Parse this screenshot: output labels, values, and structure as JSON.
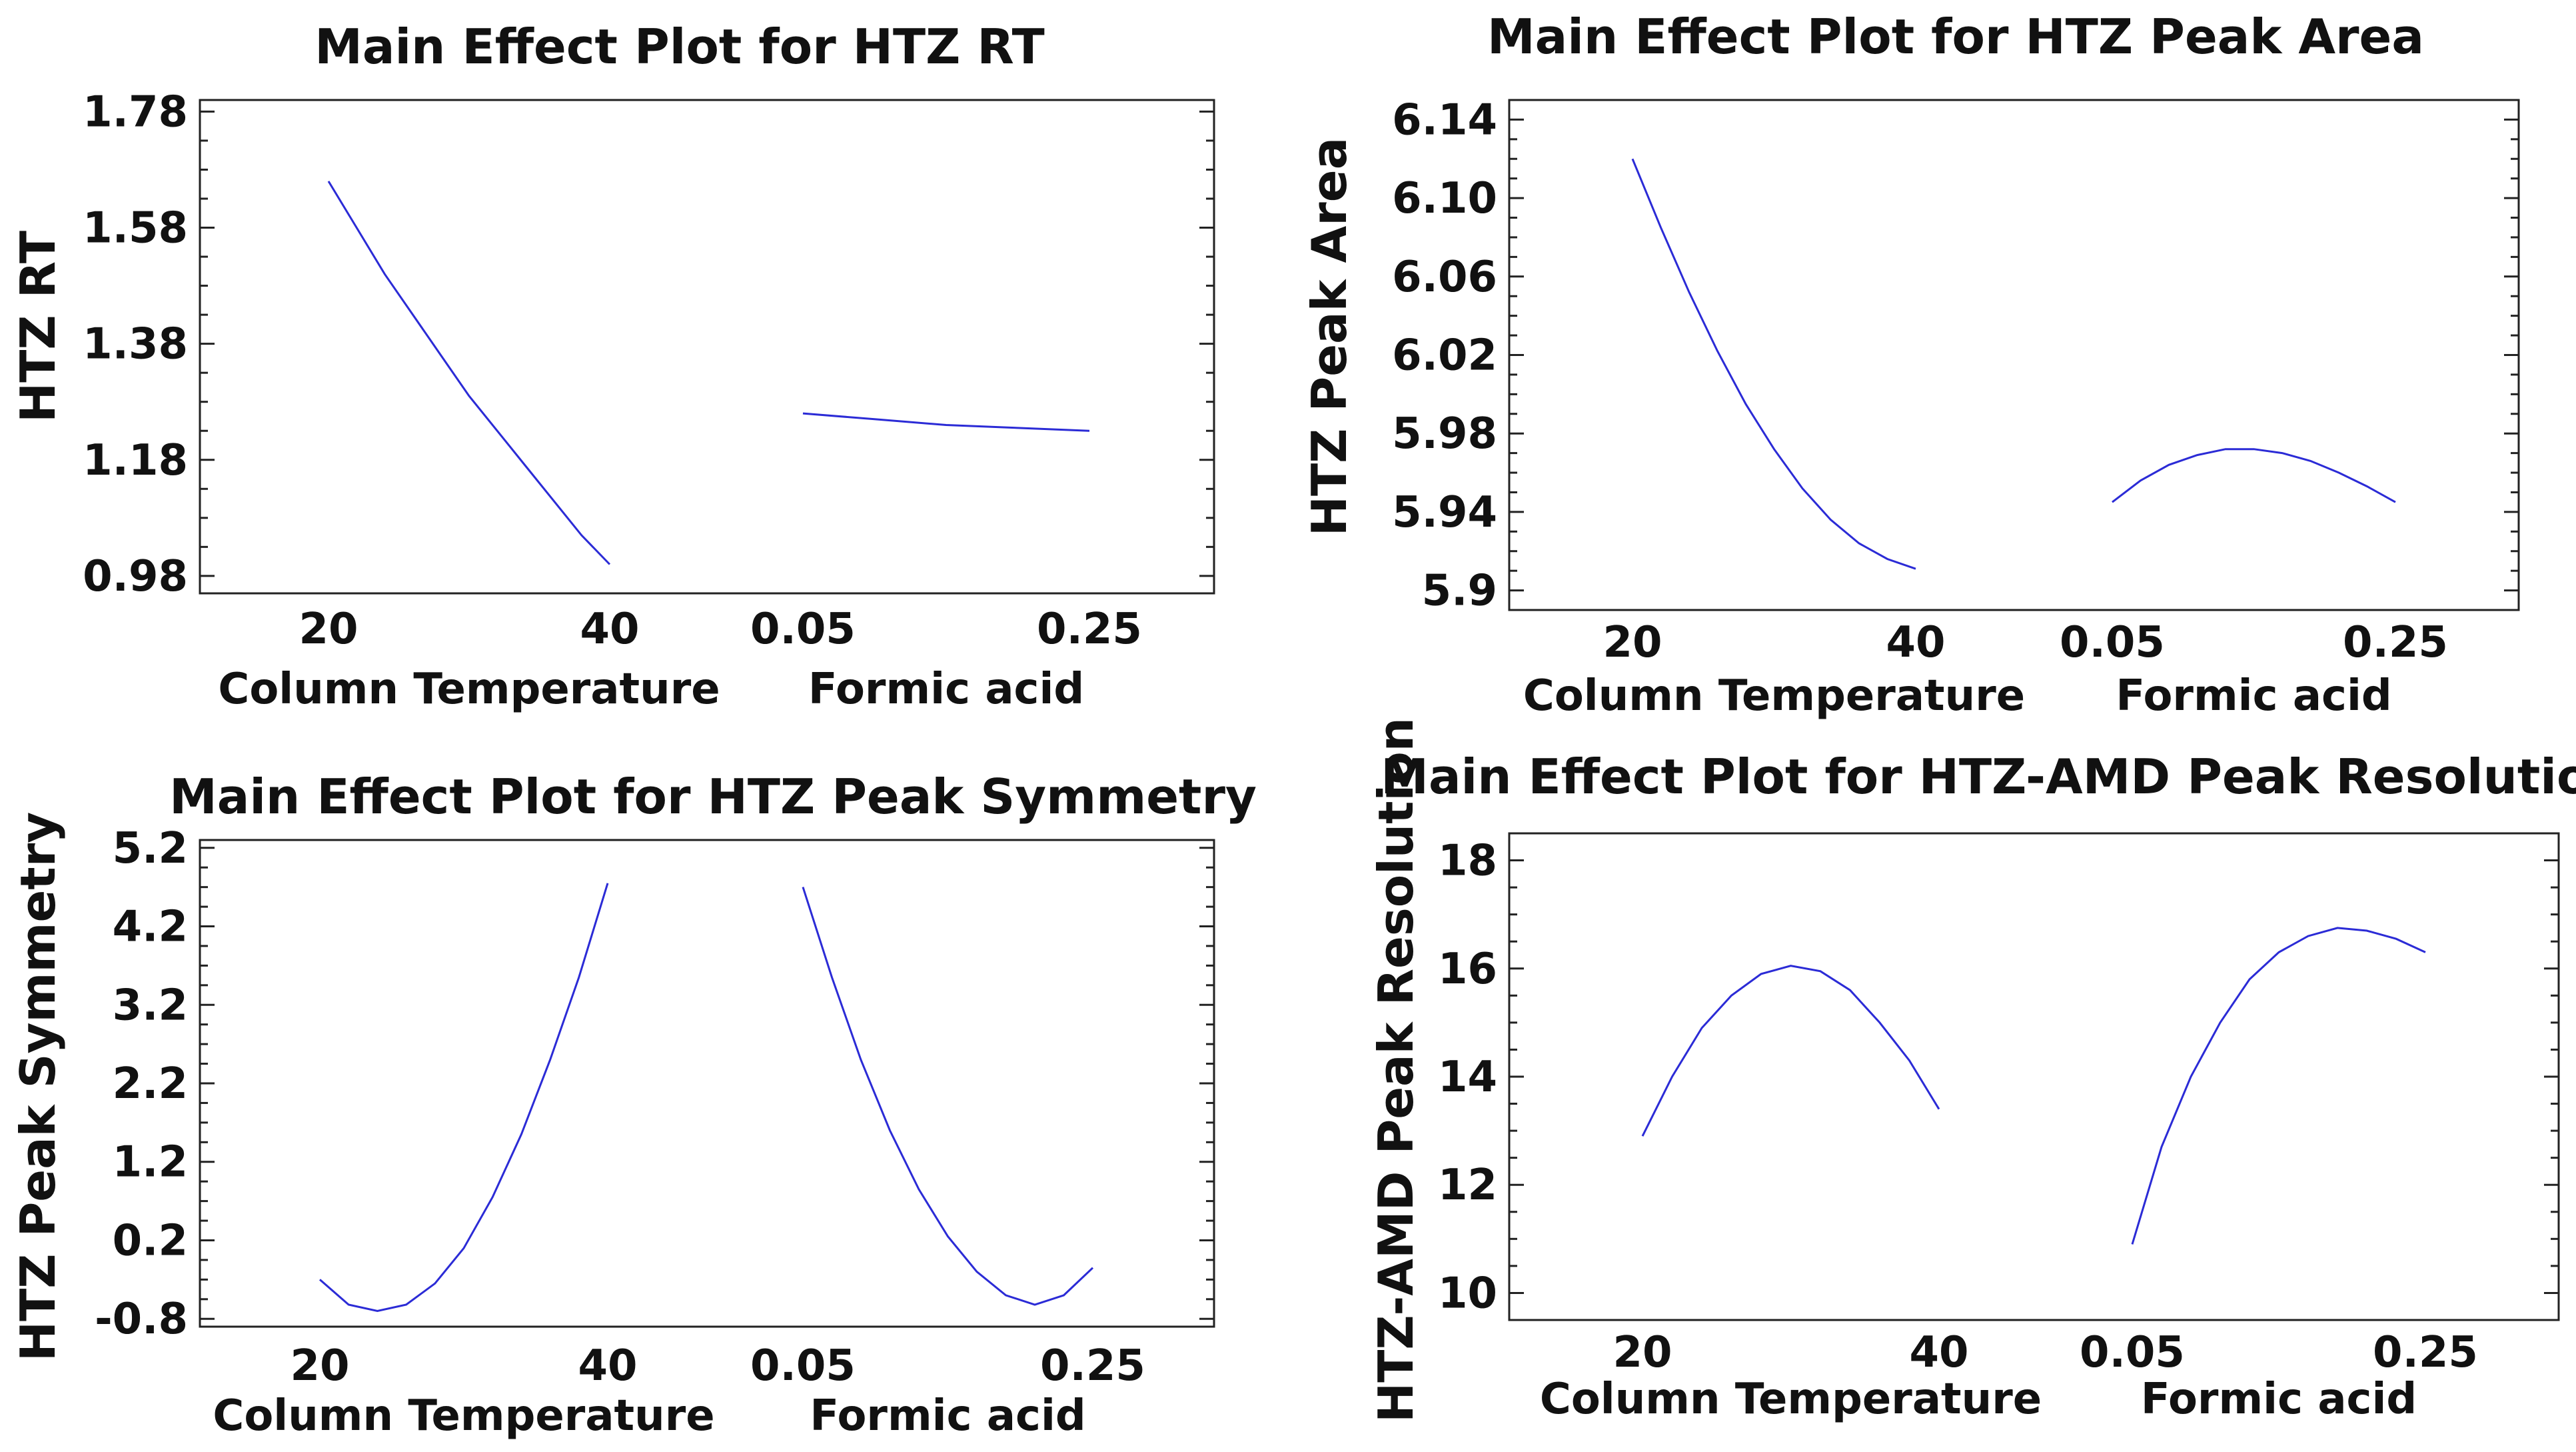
{
  "chart_data": [
    {
      "type": "line",
      "title": "Main Effect Plot for HTZ RT",
      "ylabel": "HTZ RT",
      "ylim": [
        0.95,
        1.8
      ],
      "yticks": [
        "1.78",
        "1.58",
        "1.38",
        "1.18",
        "0.98"
      ],
      "factors": [
        {
          "name": "Column Temperature",
          "tick_labels": [
            "20",
            "40"
          ],
          "x": [
            20,
            22,
            24,
            26,
            28,
            30,
            32,
            34,
            36,
            38,
            40
          ],
          "y": [
            1.66,
            1.58,
            1.5,
            1.43,
            1.36,
            1.29,
            1.23,
            1.17,
            1.11,
            1.05,
            1.0
          ]
        },
        {
          "name": "Formic acid",
          "tick_labels": [
            "0.05",
            "0.25"
          ],
          "x": [
            0.05,
            0.1,
            0.15,
            0.2,
            0.25
          ],
          "y": [
            1.26,
            1.25,
            1.24,
            1.235,
            1.23
          ]
        }
      ]
    },
    {
      "type": "line",
      "title": "Main Effect Plot for HTZ Peak Area",
      "ylabel": "HTZ Peak Area",
      "ylim": [
        5.89,
        6.15
      ],
      "yticks": [
        "6.14",
        "6.10",
        "6.06",
        "6.02",
        "5.98",
        "5.94",
        "5.9"
      ],
      "factors": [
        {
          "name": "Column Temperature",
          "tick_labels": [
            "20",
            "40"
          ],
          "x": [
            20,
            22,
            24,
            26,
            28,
            30,
            32,
            34,
            36,
            38,
            40
          ],
          "y": [
            6.12,
            6.085,
            6.052,
            6.022,
            5.995,
            5.972,
            5.952,
            5.936,
            5.924,
            5.916,
            5.911
          ]
        },
        {
          "name": "Formic acid",
          "tick_labels": [
            "0.05",
            "0.25"
          ],
          "x": [
            0.05,
            0.07,
            0.09,
            0.11,
            0.13,
            0.15,
            0.17,
            0.19,
            0.21,
            0.23,
            0.25
          ],
          "y": [
            5.945,
            5.956,
            5.964,
            5.969,
            5.972,
            5.972,
            5.97,
            5.966,
            5.96,
            5.953,
            5.945
          ]
        }
      ]
    },
    {
      "type": "line",
      "title": "Main Effect Plot for HTZ Peak Symmetry",
      "ylabel": "HTZ Peak Symmetry",
      "ylim": [
        -0.9,
        5.3
      ],
      "yticks": [
        "5.2",
        "4.2",
        "3.2",
        "2.2",
        "1.2",
        "0.2",
        "-0.8"
      ],
      "factors": [
        {
          "name": "Column Temperature",
          "tick_labels": [
            "20",
            "40"
          ],
          "x": [
            20,
            22,
            24,
            26,
            28,
            30,
            32,
            34,
            36,
            38,
            40
          ],
          "y": [
            -0.3,
            -0.62,
            -0.7,
            -0.62,
            -0.35,
            0.1,
            0.75,
            1.55,
            2.5,
            3.55,
            4.75
          ]
        },
        {
          "name": "Formic acid",
          "tick_labels": [
            "0.05",
            "0.25"
          ],
          "x": [
            0.05,
            0.07,
            0.09,
            0.11,
            0.13,
            0.15,
            0.17,
            0.19,
            0.21,
            0.23,
            0.25
          ],
          "y": [
            4.7,
            3.55,
            2.5,
            1.6,
            0.85,
            0.25,
            -0.2,
            -0.5,
            -0.62,
            -0.5,
            -0.15
          ]
        }
      ]
    },
    {
      "type": "line",
      "title": "Main Effect Plot for HTZ-AMD Peak Resolution",
      "ylabel": "HTZ-AMD Peak Resolution",
      "ylim": [
        9.5,
        18.5
      ],
      "yticks": [
        "18",
        "16",
        "14",
        "12",
        "10"
      ],
      "factors": [
        {
          "name": "Column Temperature",
          "tick_labels": [
            "20",
            "40"
          ],
          "x": [
            20,
            22,
            24,
            26,
            28,
            30,
            32,
            34,
            36,
            38,
            40
          ],
          "y": [
            12.9,
            14.0,
            14.9,
            15.5,
            15.9,
            16.05,
            15.95,
            15.6,
            15.0,
            14.3,
            13.4
          ]
        },
        {
          "name": "Formic acid",
          "tick_labels": [
            "0.05",
            "0.25"
          ],
          "x": [
            0.05,
            0.07,
            0.09,
            0.11,
            0.13,
            0.15,
            0.17,
            0.19,
            0.21,
            0.23,
            0.25
          ],
          "y": [
            10.9,
            12.7,
            14.0,
            15.0,
            15.8,
            16.3,
            16.6,
            16.75,
            16.7,
            16.55,
            16.3
          ]
        }
      ]
    }
  ]
}
